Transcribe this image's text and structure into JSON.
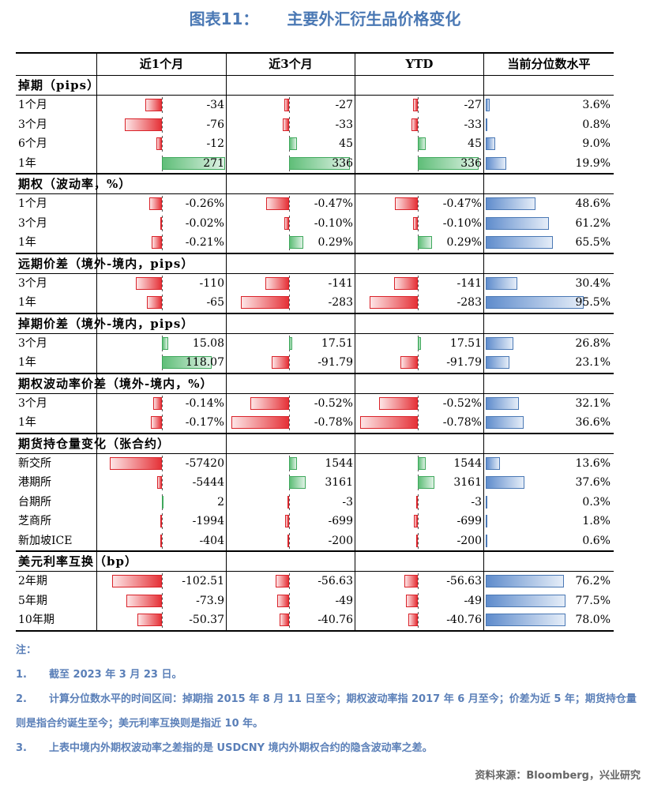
{
  "title": {
    "prefix": "图表11：",
    "text": "主要外汇衍生品价格变化"
  },
  "headers": [
    "近1个月",
    "近3个月",
    "YTD",
    "当前分位数水平"
  ],
  "sections": [
    {
      "title": "掉期（pips）",
      "scale": [
        130,
        350,
        350
      ],
      "rows": [
        {
          "label": "1个月",
          "m1": -34,
          "m3": -27,
          "ytd": -27,
          "pct": 3.6,
          "m1_text": "-34",
          "m3_text": "-27",
          "ytd_text": "-27",
          "pct_text": "3.6%"
        },
        {
          "label": "3个月",
          "m1": -76,
          "m3": -33,
          "ytd": -33,
          "pct": 0.8,
          "m1_text": "-76",
          "m3_text": "-33",
          "ytd_text": "-33",
          "pct_text": "0.8%"
        },
        {
          "label": "6个月",
          "m1": -12,
          "m3": 45,
          "ytd": 45,
          "pct": 9.0,
          "m1_text": "-12",
          "m3_text": "45",
          "ytd_text": "45",
          "pct_text": "9.0%"
        },
        {
          "label": "1年",
          "m1": 271,
          "m3": 336,
          "ytd": 336,
          "pct": 19.9,
          "m1_text": "271",
          "m3_text": "336",
          "ytd_text": "336",
          "pct_text": "19.9%"
        }
      ]
    },
    {
      "title": "期权（波动率，%）",
      "scale": [
        1.3,
        1.3,
        1.3
      ],
      "rows": [
        {
          "label": "1个月",
          "m1": -0.26,
          "m3": -0.47,
          "ytd": -0.47,
          "pct": 48.6,
          "m1_text": "-0.26%",
          "m3_text": "-0.47%",
          "ytd_text": "-0.47%",
          "pct_text": "48.6%"
        },
        {
          "label": "3个月",
          "m1": -0.02,
          "m3": -0.1,
          "ytd": -0.1,
          "pct": 61.2,
          "m1_text": "-0.02%",
          "m3_text": "-0.10%",
          "ytd_text": "-0.10%",
          "pct_text": "61.2%"
        },
        {
          "label": "1年",
          "m1": -0.21,
          "m3": 0.29,
          "ytd": 0.29,
          "pct": 65.5,
          "m1_text": "-0.21%",
          "m3_text": "0.29%",
          "ytd_text": "0.29%",
          "pct_text": "65.5%"
        }
      ]
    },
    {
      "title": "远期价差（境外-境内，pips）",
      "scale": [
        270,
        370,
        370
      ],
      "rows": [
        {
          "label": "3个月",
          "m1": -110,
          "m3": -141,
          "ytd": -141,
          "pct": 30.4,
          "m1_text": "-110",
          "m3_text": "-141",
          "ytd_text": "-141",
          "pct_text": "30.4%"
        },
        {
          "label": "1年",
          "m1": -65,
          "m3": -283,
          "ytd": -283,
          "pct": 95.5,
          "m1_text": "-65",
          "m3_text": "-283",
          "ytd_text": "-283",
          "pct_text": "95.5%"
        }
      ]
    },
    {
      "title": "掉期价差（境外-境内，pips）",
      "scale": [
        150,
        340,
        340
      ],
      "rows": [
        {
          "label": "3个月",
          "m1": 15.08,
          "m3": 17.51,
          "ytd": 17.51,
          "pct": 26.8,
          "m1_text": "15.08",
          "m3_text": "17.51",
          "ytd_text": "17.51",
          "pct_text": "26.8%"
        },
        {
          "label": "1年",
          "m1": 118.07,
          "m3": -91.79,
          "ytd": -91.79,
          "pct": 23.1,
          "m1_text": "118.07",
          "m3_text": "-91.79",
          "ytd_text": "-91.79",
          "pct_text": "23.1%"
        }
      ]
    },
    {
      "title": "期权波动率价差（境外-境内，%）",
      "scale": [
        1.0,
        0.85,
        0.85
      ],
      "rows": [
        {
          "label": "3个月",
          "m1": -0.14,
          "m3": -0.52,
          "ytd": -0.52,
          "pct": 32.1,
          "m1_text": "-0.14%",
          "m3_text": "-0.52%",
          "ytd_text": "-0.52%",
          "pct_text": "32.1%"
        },
        {
          "label": "1年",
          "m1": -0.17,
          "m3": -0.78,
          "ytd": -0.78,
          "pct": 36.6,
          "m1_text": "-0.17%",
          "m3_text": "-0.78%",
          "ytd_text": "-0.78%",
          "pct_text": "36.6%"
        }
      ]
    },
    {
      "title": "期货持仓量变化（张合约）",
      "scale": [
        70000,
        12000,
        12000
      ],
      "rows": [
        {
          "label": "新交所",
          "m1": -57420,
          "m3": 1544,
          "ytd": 1544,
          "pct": 13.6,
          "m1_text": "-57420",
          "m3_text": "1544",
          "ytd_text": "1544",
          "pct_text": "13.6%"
        },
        {
          "label": "港期所",
          "m1": -5444,
          "m3": 3161,
          "ytd": 3161,
          "pct": 37.6,
          "m1_text": "-5444",
          "m3_text": "3161",
          "ytd_text": "3161",
          "pct_text": "37.6%"
        },
        {
          "label": "台期所",
          "m1": 2,
          "m3": -3,
          "ytd": -3,
          "pct": 0.3,
          "m1_text": "2",
          "m3_text": "-3",
          "ytd_text": "-3",
          "pct_text": "0.3%"
        },
        {
          "label": "芝商所",
          "m1": -1994,
          "m3": -699,
          "ytd": -699,
          "pct": 1.8,
          "m1_text": "-1994",
          "m3_text": "-699",
          "ytd_text": "-699",
          "pct_text": "1.8%"
        },
        {
          "label": "新加坡ICE",
          "m1": -404,
          "m3": -200,
          "ytd": -200,
          "pct": 0.6,
          "m1_text": "-404",
          "m3_text": "-200",
          "ytd_text": "-200",
          "pct_text": "0.6%"
        }
      ]
    },
    {
      "title": "美元利率互换（bp）",
      "scale": [
        130,
        270,
        270
      ],
      "rows": [
        {
          "label": "2年期",
          "m1": -102.51,
          "m3": -56.63,
          "ytd": -56.63,
          "pct": 76.2,
          "m1_text": "-102.51",
          "m3_text": "-56.63",
          "ytd_text": "-56.63",
          "pct_text": "76.2%"
        },
        {
          "label": "5年期",
          "m1": -73.9,
          "m3": -49,
          "ytd": -49,
          "pct": 77.5,
          "m1_text": "-73.9",
          "m3_text": "-49",
          "ytd_text": "-49",
          "pct_text": "77.5%"
        },
        {
          "label": "10年期",
          "m1": -50.37,
          "m3": -40.76,
          "ytd": -40.76,
          "pct": 78.0,
          "m1_text": "-50.37",
          "m3_text": "-40.76",
          "ytd_text": "-40.76",
          "pct_text": "78.0%"
        }
      ]
    }
  ],
  "notes": {
    "heading": "注：",
    "items": [
      {
        "num": "1.",
        "text": "截至 2023 年 3 月 23 日。"
      },
      {
        "num": "2.",
        "text": "计算分位数水平的时间区间：掉期指 2015 年 8 月 11 日至今；期权波动率指 2017 年 6 月至今；价差为近 5 年；期货持仓量则是指合约诞生至今；美元利率互换则是指近 10 年。"
      },
      {
        "num": "3.",
        "text": "上表中境内外期权波动率之差指的是 USDCNY 境内外期权合约的隐含波动率之差。"
      }
    ]
  },
  "source": "资料来源：Bloomberg，兴业研究"
}
